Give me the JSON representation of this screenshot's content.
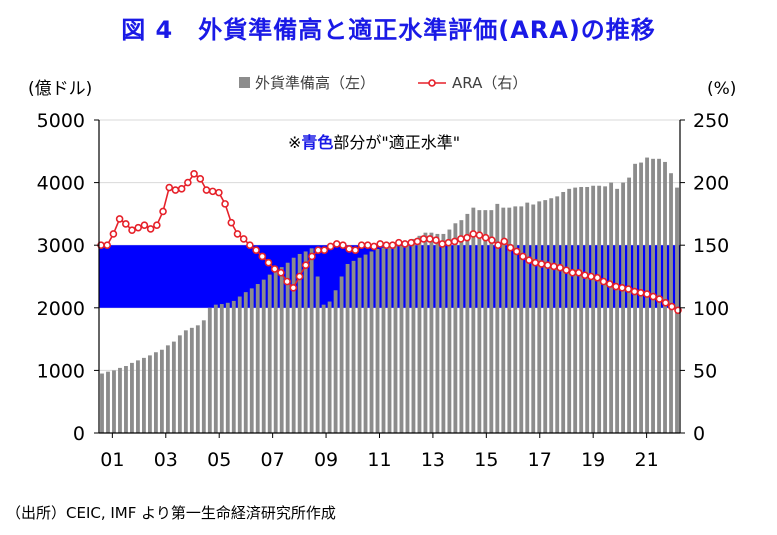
{
  "title": "図 4　外貨準備高と適正水準評価(ARA)の推移",
  "source": "（出所）CEIC, IMF より第一生命経済研究所作成",
  "chart_data": {
    "type": "bar",
    "title": "図 4　外貨準備高と適正水準評価(ARA)の推移",
    "left_unit": "(億ドル)",
    "right_unit": "(%)",
    "band_note_prefix": "※",
    "band_note_highlight": "青色",
    "band_note_suffix": "部分が\"適正水準\"",
    "band": {
      "low": 100,
      "high": 150,
      "axis": "right",
      "color": "#0000ff"
    },
    "left_axis": {
      "min": 0,
      "max": 5000,
      "ticks": [
        "0",
        "1000",
        "2000",
        "3000",
        "4000",
        "5000"
      ]
    },
    "right_axis": {
      "min": 0,
      "max": 250,
      "ticks": [
        "0",
        "50",
        "100",
        "150",
        "200",
        "250"
      ]
    },
    "x_ticks": [
      "01",
      "03",
      "05",
      "07",
      "09",
      "11",
      "13",
      "15",
      "17",
      "19",
      "21"
    ],
    "x_start": 2001.0,
    "x_end": 2022.75,
    "series": [
      {
        "name": "外貨準備高（左）",
        "kind": "bar",
        "axis": "left",
        "color": "#8c8c8c",
        "values": [
          950,
          980,
          1000,
          1040,
          1070,
          1120,
          1160,
          1200,
          1240,
          1290,
          1330,
          1400,
          1460,
          1560,
          1640,
          1680,
          1720,
          1800,
          2000,
          2050,
          2060,
          2080,
          2110,
          2180,
          2250,
          2310,
          2380,
          2450,
          2530,
          2600,
          2650,
          2720,
          2800,
          2860,
          2900,
          2950,
          2500,
          2050,
          2100,
          2280,
          2500,
          2700,
          2750,
          2800,
          2850,
          2900,
          2940,
          2960,
          2980,
          3000,
          2990,
          3050,
          3100,
          3150,
          3200,
          3200,
          3180,
          3180,
          3250,
          3350,
          3400,
          3500,
          3600,
          3560,
          3560,
          3560,
          3660,
          3600,
          3600,
          3620,
          3620,
          3680,
          3650,
          3700,
          3720,
          3750,
          3780,
          3850,
          3900,
          3920,
          3930,
          3930,
          3950,
          3950,
          3940,
          4000,
          3900,
          4000,
          4080,
          4300,
          4320,
          4400,
          4380,
          4380,
          4330,
          4150,
          3920
        ]
      },
      {
        "name": "ARA（右）",
        "kind": "line",
        "axis": "right",
        "color": "#e6212a",
        "values": [
          150,
          150,
          159,
          171,
          167,
          162,
          164,
          166,
          163,
          166,
          177,
          196,
          194,
          195,
          200,
          207,
          203,
          194,
          193,
          192,
          183,
          168,
          159,
          155,
          150,
          146,
          141,
          136,
          131,
          128,
          121,
          116,
          125,
          134,
          141,
          146,
          146,
          149,
          151,
          150,
          147,
          146,
          150,
          150,
          149,
          151,
          150,
          150,
          152,
          151,
          152,
          153,
          155,
          155,
          154,
          151,
          152,
          153,
          155,
          156,
          159,
          158,
          156,
          154,
          150,
          153,
          148,
          145,
          141,
          138,
          136,
          135,
          134,
          133,
          132,
          130,
          128,
          128,
          126,
          125,
          124,
          121,
          119,
          117,
          116,
          115,
          113,
          112,
          111,
          109,
          107,
          104,
          101,
          98
        ]
      }
    ]
  }
}
